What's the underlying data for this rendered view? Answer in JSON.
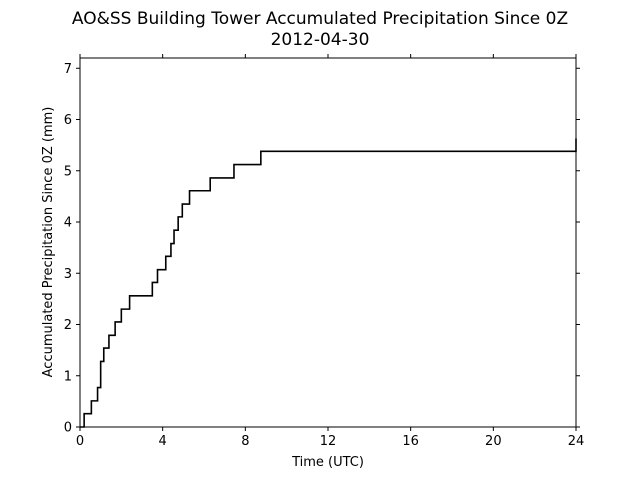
{
  "chart_data": {
    "type": "line",
    "title": "AO&SS Building Tower Accumulated Precipitation Since 0Z",
    "subtitle": "2012-04-30",
    "xlabel": "Time (UTC)",
    "ylabel": "Accumulated Precipitation Since 0Z (mm)",
    "xlim": [
      0,
      24
    ],
    "ylim": [
      0,
      7.2
    ],
    "xticks": [
      0,
      4,
      8,
      12,
      16,
      20,
      24
    ],
    "yticks": [
      0,
      1,
      2,
      3,
      4,
      5,
      6,
      7
    ],
    "grid": false,
    "legend": "none",
    "step": true,
    "line_color": "#000000",
    "series": [
      {
        "x": [
          0.0,
          0.2,
          0.55,
          0.85,
          1.0,
          1.15,
          1.4,
          1.7,
          2.0,
          2.4,
          3.5,
          3.75,
          4.15,
          4.4,
          4.55,
          4.75,
          4.95,
          5.3,
          6.3,
          7.45,
          8.75,
          24.0
        ],
        "y": [
          0.0,
          0.26,
          0.51,
          0.77,
          1.28,
          1.54,
          1.79,
          2.05,
          2.3,
          2.56,
          2.82,
          3.07,
          3.33,
          3.58,
          3.84,
          4.1,
          4.35,
          4.61,
          4.86,
          5.12,
          5.38,
          5.63
        ]
      }
    ]
  }
}
